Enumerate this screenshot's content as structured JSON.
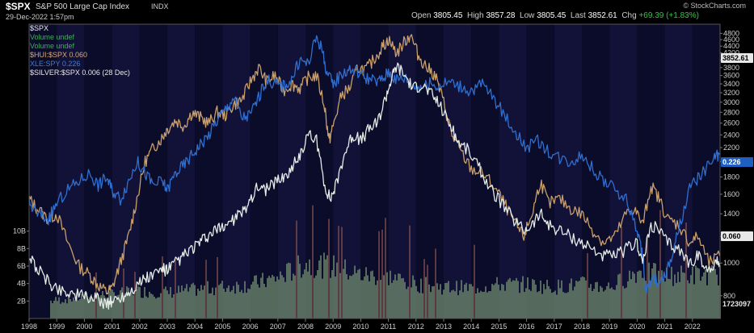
{
  "header": {
    "symbol": "$SPX",
    "name": "S&P 500 Large Cap Index",
    "exchange": "INDX",
    "timestamp": "29-Dec-2022 1:57pm",
    "open_label": "Open",
    "open": "3805.45",
    "high_label": "High",
    "high": "3857.28",
    "low_label": "Low",
    "low": "3805.45",
    "last_label": "Last",
    "last": "3852.61",
    "chg_label": "Chg",
    "chg": "+69.39 (+1.83%)",
    "brand": "© StockCharts.com"
  },
  "legend": [
    {
      "text": "$SPX",
      "color": "#e8e8e8"
    },
    {
      "text": "Volume undef",
      "color": "#3fae5b"
    },
    {
      "text": "Volume undef",
      "color": "#3fae5b"
    },
    {
      "text": "$HUI:$SPX 0.060",
      "color": "#d9aa72"
    },
    {
      "text": "XLE:SPY 0.226",
      "color": "#3b7fd6"
    },
    {
      "text": "$SILVER:$SPX 0.006 (28 Dec)",
      "color": "#e8e8e8"
    }
  ],
  "colors": {
    "gold": "#c9a06a",
    "blue": "#2e6fd1",
    "silver": "#e4ece6",
    "volume": "#6f8a6f",
    "volume_spike": "#7a4a4a"
  },
  "chart_data": {
    "type": "line",
    "x_tick_labels": [
      "1998",
      "1999",
      "2000",
      "2001",
      "2002",
      "2003",
      "2004",
      "2005",
      "2006",
      "2007",
      "2008",
      "2009",
      "2010",
      "2011",
      "2012",
      "2013",
      "2014",
      "2015",
      "2016",
      "2017",
      "2018",
      "2019",
      "2020",
      "2021",
      "2022"
    ],
    "right_axis_ticks": [
      "4800",
      "4600",
      "4400",
      "4200",
      "4000",
      "3800",
      "3600",
      "3400",
      "3200",
      "3000",
      "2800",
      "2600",
      "2400",
      "2200",
      "2000",
      "1800",
      "1600",
      "1400",
      "1200",
      "1000",
      "800"
    ],
    "right_axis_tick_values": [
      4800,
      4600,
      4400,
      4200,
      4000,
      3800,
      3600,
      3400,
      3200,
      3000,
      2800,
      2600,
      2400,
      2200,
      2000,
      1800,
      1600,
      1400,
      1200,
      1000,
      800
    ],
    "right_axis_scale": "log",
    "right_axis_range": [
      700,
      5000
    ],
    "volume_axis_ticks": [
      "10B",
      "8B",
      "6B",
      "4B",
      "2B"
    ],
    "volume_axis_tick_values": [
      10,
      8,
      6,
      4,
      2
    ],
    "volume_axis_range": [
      0,
      12
    ],
    "last_value_labels": [
      {
        "text": "3852.61",
        "series": "$SPX"
      },
      {
        "text": "0.226",
        "series": "XLE:SPY"
      },
      {
        "text": "0.060",
        "series": "$HUI:$SPX"
      },
      {
        "text": "1723097",
        "series": "Volume"
      }
    ],
    "series": [
      {
        "name": "$HUI:$SPX",
        "color": "#c9a06a",
        "x": [
          1998.0,
          1998.3,
          1998.7,
          1999.0,
          1999.4,
          1999.8,
          2000.2,
          2000.5,
          2000.8,
          2001.0,
          2001.3,
          2001.6,
          2001.9,
          2002.2,
          2002.5,
          2002.8,
          2003.0,
          2003.3,
          2003.6,
          2003.9,
          2004.2,
          2004.5,
          2004.8,
          2005.1,
          2005.4,
          2005.7,
          2006.0,
          2006.3,
          2006.6,
          2006.9,
          2007.2,
          2007.5,
          2007.8,
          2008.1,
          2008.4,
          2008.7,
          2008.85,
          2009.0,
          2009.3,
          2009.6,
          2009.9,
          2010.2,
          2010.5,
          2010.8,
          2011.0,
          2011.3,
          2011.6,
          2011.8,
          2012.1,
          2012.4,
          2012.7,
          2013.0,
          2013.3,
          2013.6,
          2014.0,
          2014.4,
          2014.8,
          2015.2,
          2015.6,
          2015.9,
          2016.2,
          2016.5,
          2016.8,
          2017.2,
          2017.6,
          2018.0,
          2018.4,
          2018.8,
          2019.2,
          2019.6,
          2019.9,
          2020.2,
          2020.5,
          2020.8,
          2021.1,
          2021.5,
          2021.9,
          2022.2,
          2022.6,
          2022.99
        ],
        "y": [
          1550,
          1450,
          1350,
          1400,
          1150,
          980,
          920,
          860,
          820,
          840,
          1000,
          1200,
          1550,
          2000,
          2200,
          2350,
          2500,
          2650,
          2550,
          2800,
          2700,
          2600,
          2800,
          2750,
          2950,
          3050,
          3450,
          3800,
          3450,
          3600,
          3250,
          3400,
          3300,
          3550,
          3600,
          2900,
          2300,
          2550,
          3150,
          3300,
          3800,
          3750,
          4050,
          4400,
          4600,
          4200,
          4550,
          4750,
          4100,
          3800,
          3600,
          3000,
          2400,
          2150,
          1900,
          1850,
          1700,
          1500,
          1300,
          1200,
          1400,
          1750,
          1500,
          1550,
          1450,
          1400,
          1250,
          1150,
          1200,
          1400,
          1450,
          1300,
          1700,
          1550,
          1350,
          1300,
          1150,
          1200,
          1000,
          1050
        ]
      },
      {
        "name": "XLE:SPY",
        "color": "#2e6fd1",
        "x": [
          1998.0,
          1998.3,
          1998.7,
          1999.0,
          1999.4,
          1999.8,
          2000.2,
          2000.5,
          2000.8,
          2001.0,
          2001.3,
          2001.6,
          2001.9,
          2002.2,
          2002.5,
          2002.8,
          2003.0,
          2003.3,
          2003.6,
          2003.9,
          2004.2,
          2004.5,
          2004.8,
          2005.1,
          2005.4,
          2005.7,
          2006.0,
          2006.3,
          2006.6,
          2006.9,
          2007.2,
          2007.5,
          2007.8,
          2008.1,
          2008.4,
          2008.6,
          2008.8,
          2009.0,
          2009.3,
          2009.6,
          2009.9,
          2010.2,
          2010.5,
          2010.8,
          2011.0,
          2011.3,
          2011.6,
          2011.9,
          2012.2,
          2012.5,
          2012.8,
          2013.2,
          2013.6,
          2014.0,
          2014.4,
          2014.8,
          2015.2,
          2015.6,
          2016.0,
          2016.4,
          2016.8,
          2017.2,
          2017.6,
          2018.0,
          2018.4,
          2018.8,
          2019.2,
          2019.6,
          2020.0,
          2020.2,
          2020.3,
          2020.6,
          2020.9,
          2021.2,
          2021.5,
          2021.9,
          2022.2,
          2022.5,
          2022.8,
          2022.99
        ],
        "y": [
          1500,
          1400,
          1350,
          1500,
          1650,
          1750,
          1850,
          1700,
          1800,
          1650,
          1550,
          1750,
          2000,
          1850,
          1700,
          1750,
          1650,
          1850,
          1950,
          2100,
          2250,
          2400,
          2650,
          2850,
          3100,
          2700,
          2750,
          3100,
          3500,
          3400,
          3350,
          3500,
          4000,
          3900,
          4700,
          4300,
          3600,
          3400,
          3650,
          3750,
          3700,
          3550,
          3450,
          3500,
          3700,
          3500,
          3550,
          3350,
          3350,
          3400,
          3350,
          3450,
          3350,
          3250,
          3400,
          3100,
          2750,
          2450,
          2200,
          2300,
          2150,
          2050,
          2000,
          2100,
          1900,
          1750,
          1650,
          1550,
          1250,
          1050,
          820,
          900,
          880,
          1000,
          1250,
          1650,
          1800,
          1900,
          2050,
          2100
        ]
      },
      {
        "name": "$SILVER:$SPX",
        "color": "#e4ece6",
        "x": [
          1998.0,
          1998.3,
          1998.7,
          1999.0,
          1999.4,
          1999.8,
          2000.2,
          2000.5,
          2000.8,
          2001.0,
          2001.3,
          2001.6,
          2001.9,
          2002.2,
          2002.5,
          2002.8,
          2003.0,
          2003.3,
          2003.6,
          2003.9,
          2004.2,
          2004.5,
          2004.8,
          2005.1,
          2005.4,
          2005.7,
          2006.0,
          2006.3,
          2006.6,
          2006.9,
          2007.2,
          2007.5,
          2007.8,
          2008.1,
          2008.4,
          2008.7,
          2008.9,
          2009.1,
          2009.4,
          2009.7,
          2010.0,
          2010.3,
          2010.6,
          2010.9,
          2011.1,
          2011.3,
          2011.6,
          2011.9,
          2012.2,
          2012.5,
          2012.8,
          2013.2,
          2013.5,
          2013.9,
          2014.3,
          2014.7,
          2015.1,
          2015.5,
          2015.9,
          2016.2,
          2016.5,
          2016.8,
          2017.2,
          2017.6,
          2018.0,
          2018.4,
          2018.8,
          2019.2,
          2019.6,
          2020.0,
          2020.2,
          2020.5,
          2020.8,
          2021.1,
          2021.5,
          2021.9,
          2022.2,
          2022.5,
          2022.8,
          2022.99
        ],
        "y": [
          1050,
          960,
          880,
          840,
          820,
          800,
          790,
          780,
          760,
          770,
          790,
          820,
          860,
          900,
          920,
          960,
          950,
          1000,
          1050,
          1100,
          1150,
          1200,
          1250,
          1300,
          1350,
          1400,
          1550,
          1700,
          1650,
          1750,
          1800,
          1900,
          2100,
          2400,
          2300,
          1700,
          1550,
          1700,
          2100,
          2400,
          2300,
          2500,
          2600,
          3100,
          3500,
          3850,
          3600,
          3300,
          3400,
          3200,
          3000,
          2600,
          2300,
          2150,
          1900,
          1650,
          1500,
          1350,
          1250,
          1300,
          1400,
          1300,
          1250,
          1200,
          1150,
          1100,
          1050,
          1050,
          1100,
          1150,
          1000,
          1300,
          1250,
          1150,
          1100,
          1000,
          1050,
          950,
          1000,
          1000
        ]
      }
    ],
    "volume": {
      "x": [
        1998,
        1999,
        2000,
        2001,
        2002,
        2003,
        2004,
        2005,
        2006,
        2007,
        2008,
        2009,
        2010,
        2011,
        2012,
        2013,
        2014,
        2015,
        2016,
        2017,
        2018,
        2019,
        2020,
        2021,
        2022
      ],
      "values_billions": [
        1.6,
        2.1,
        2.5,
        2.8,
        3.1,
        3.0,
        3.3,
        3.6,
        3.9,
        4.7,
        6.3,
        5.9,
        5.0,
        4.8,
        3.9,
        3.6,
        3.5,
        3.9,
        3.9,
        3.6,
        3.9,
        3.6,
        5.4,
        4.9,
        5.0
      ]
    }
  }
}
